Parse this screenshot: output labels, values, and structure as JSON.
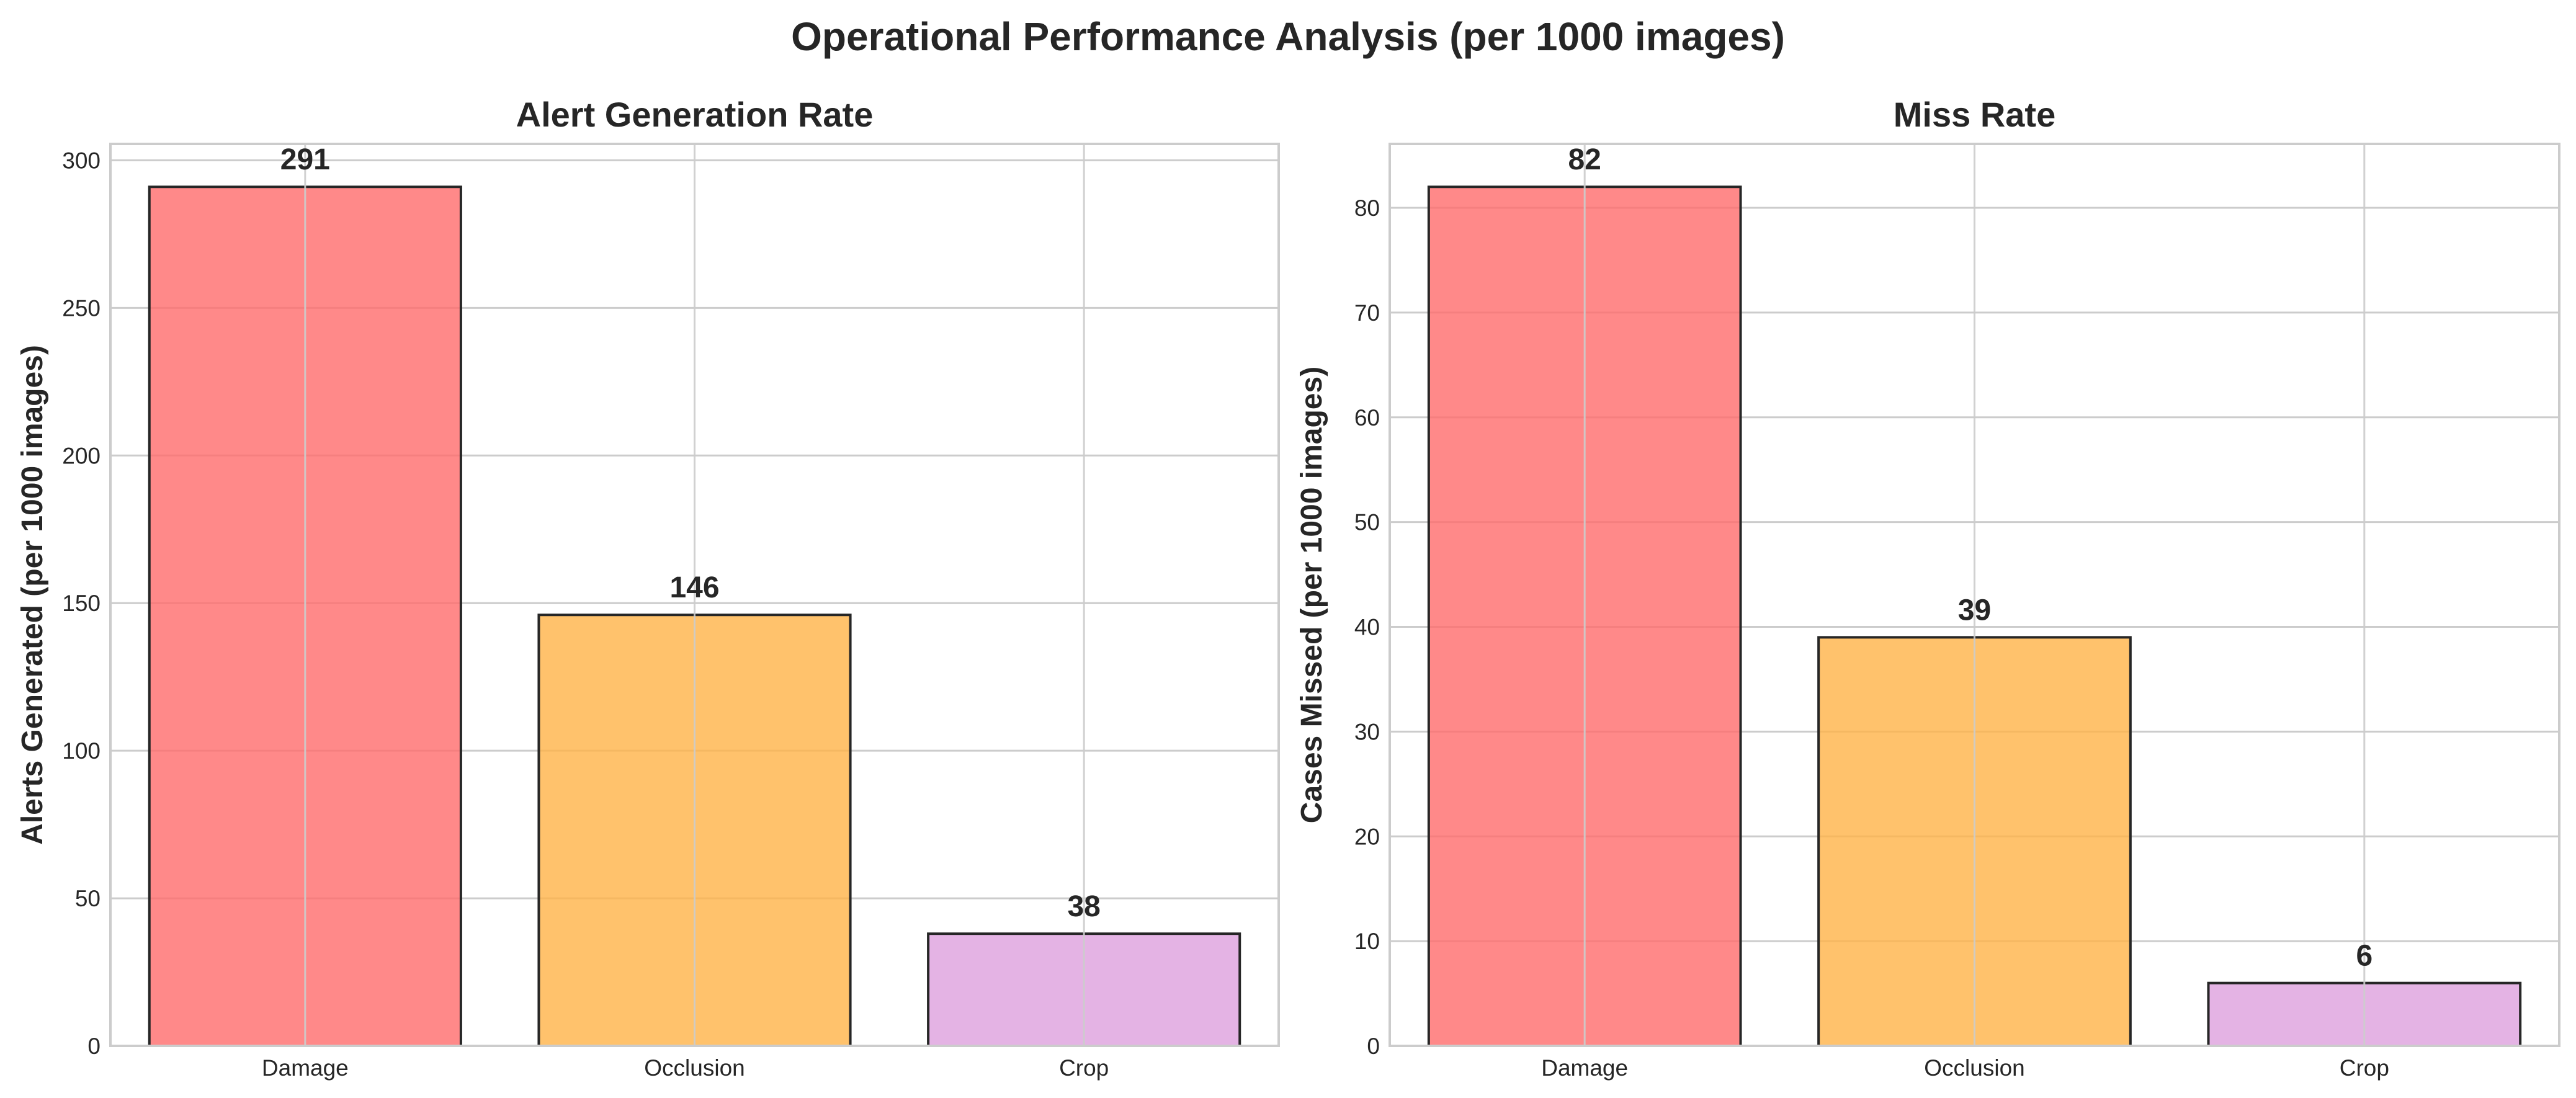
{
  "figure": {
    "title": "Operational Performance Analysis (per 1000 images)"
  },
  "colors": {
    "damage": "#ff6b6b",
    "occlusion": "#ffb347",
    "crop": "#dda0dd",
    "bar_edge": "#262626",
    "grid": "#cccccc",
    "spine": "#cccccc"
  },
  "chart_data": [
    {
      "type": "bar",
      "title": "Alert Generation Rate",
      "xlabel": "",
      "ylabel": "Alerts Generated (per 1000 images)",
      "categories": [
        "Damage",
        "Occlusion",
        "Crop"
      ],
      "values": [
        291,
        146,
        38
      ],
      "value_labels": [
        "291",
        "146",
        "38"
      ],
      "bar_colors": [
        "#ff6b6b",
        "#ffb347",
        "#dda0dd"
      ],
      "bar_alpha": 0.8,
      "ylim": [
        0,
        305.55
      ],
      "yticks": [
        0,
        50,
        100,
        150,
        200,
        250,
        300
      ],
      "grid": true
    },
    {
      "type": "bar",
      "title": "Miss Rate",
      "xlabel": "",
      "ylabel": "Cases Missed (per 1000 images)",
      "categories": [
        "Damage",
        "Occlusion",
        "Crop"
      ],
      "values": [
        82,
        39,
        6
      ],
      "value_labels": [
        "82",
        "39",
        "6"
      ],
      "bar_colors": [
        "#ff6b6b",
        "#ffb347",
        "#dda0dd"
      ],
      "bar_alpha": 0.8,
      "ylim": [
        0,
        86.1
      ],
      "yticks": [
        0,
        10,
        20,
        30,
        40,
        50,
        60,
        70,
        80
      ],
      "grid": true
    }
  ]
}
